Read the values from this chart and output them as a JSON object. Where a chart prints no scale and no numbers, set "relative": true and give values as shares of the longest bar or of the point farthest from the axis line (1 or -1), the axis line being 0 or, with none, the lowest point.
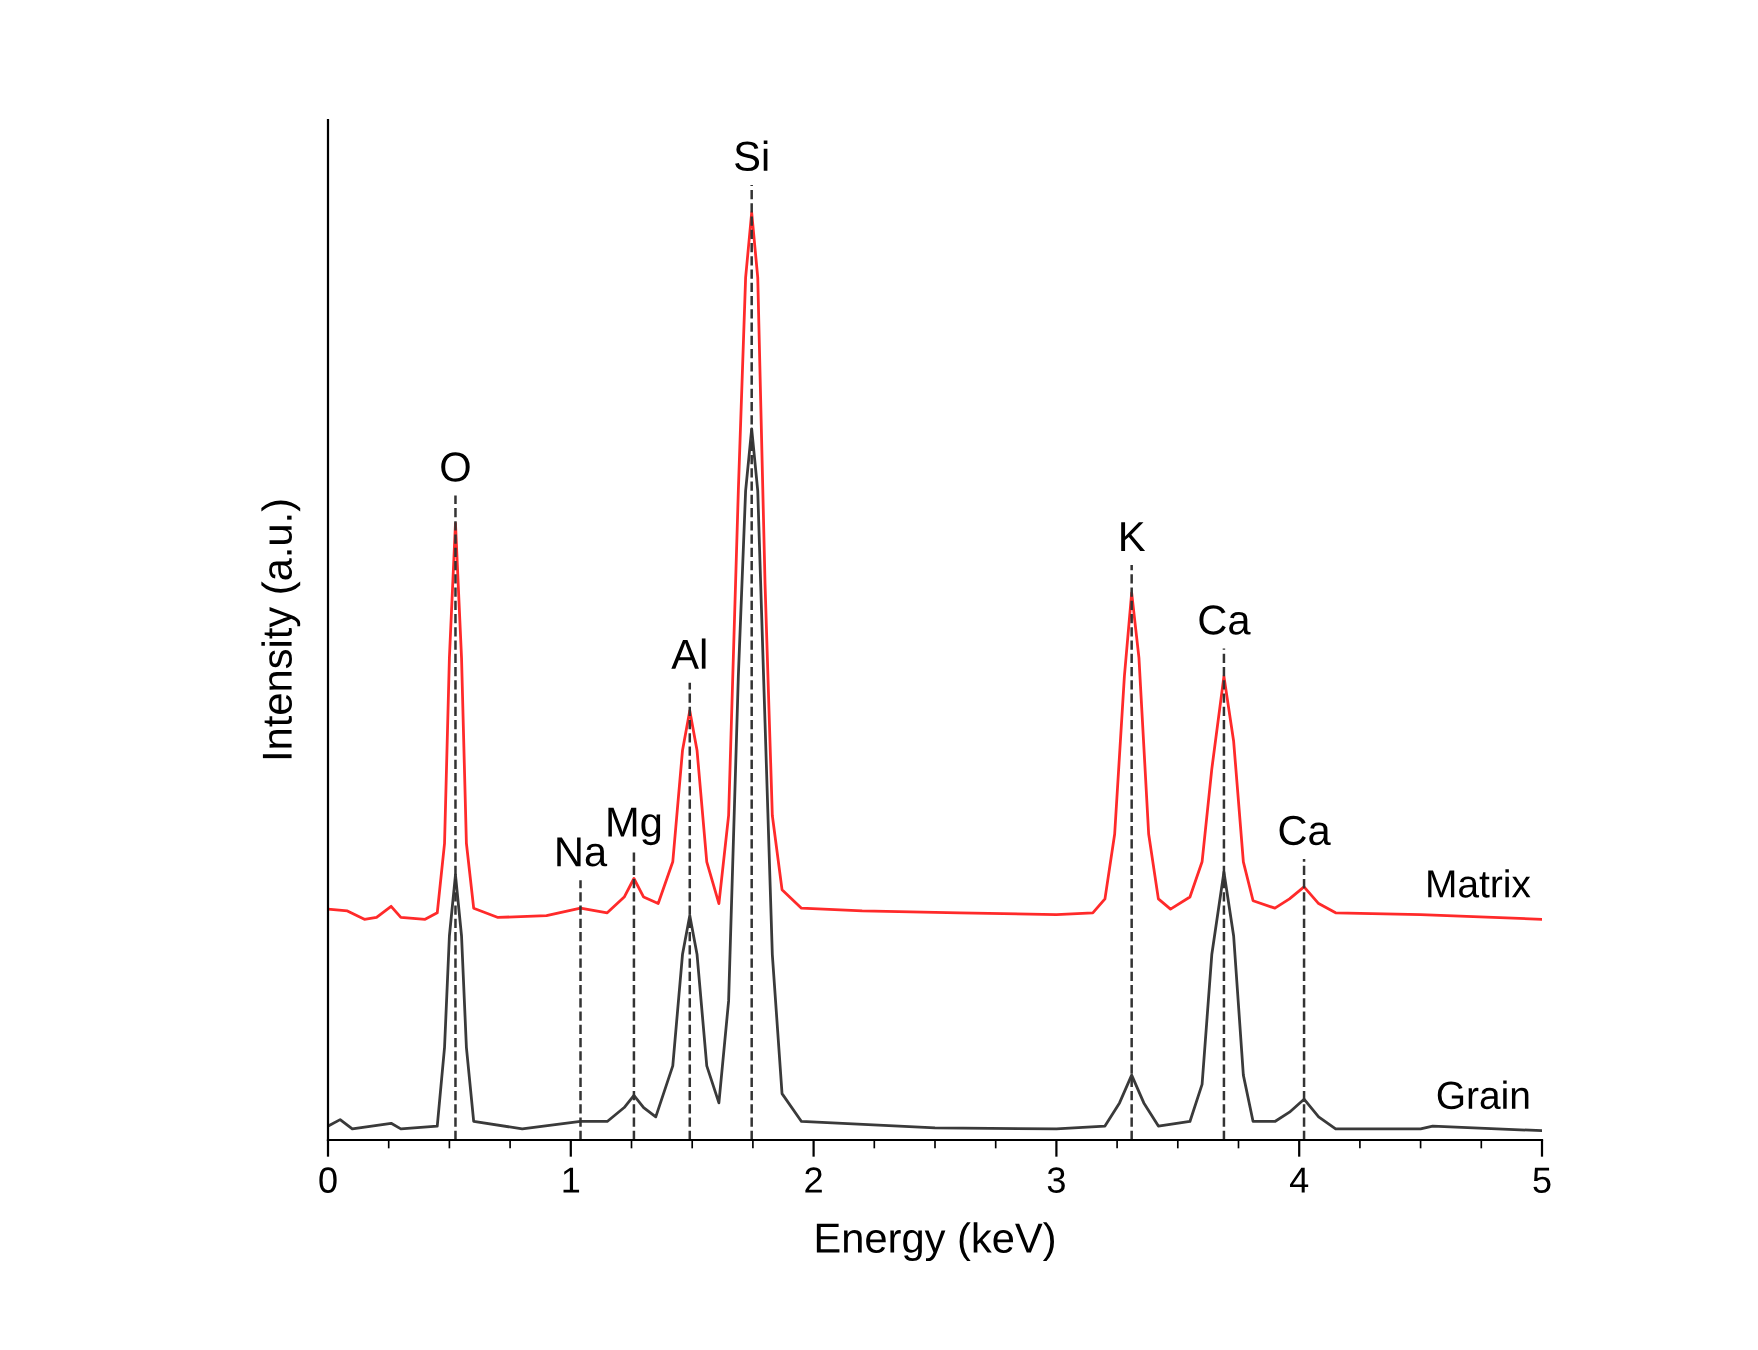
{
  "chart_data": {
    "type": "line",
    "relative": true,
    "xlabel": "Energy (keV)",
    "ylabel": "Intensity (a.u.)",
    "xlim": [
      0,
      5
    ],
    "xticks": [
      0,
      {
        "value": 0.25,
        "label": null
      },
      {
        "value": 0.5,
        "label": null
      },
      {
        "value": 0.75,
        "label": null
      },
      1,
      {
        "value": 1.25,
        "label": null
      },
      {
        "value": 1.5,
        "label": null
      },
      {
        "value": 1.75,
        "label": null
      },
      2,
      {
        "value": 2.25,
        "label": null
      },
      {
        "value": 2.5,
        "label": null
      },
      {
        "value": 2.75,
        "label": null
      },
      3,
      {
        "value": 3.25,
        "label": null
      },
      {
        "value": 3.5,
        "label": null
      },
      {
        "value": 3.75,
        "label": null
      },
      4,
      {
        "value": 4.25,
        "label": null
      },
      {
        "value": 4.5,
        "label": null
      },
      {
        "value": 4.75,
        "label": null
      },
      5
    ],
    "grid": false,
    "legend": false,
    "marker": "none",
    "line_style": "solid",
    "series": [
      {
        "name": "Matrix",
        "color": "#ff2a2a",
        "x": [
          0,
          0.08,
          0.15,
          0.2,
          0.26,
          0.3,
          0.4,
          0.45,
          0.48,
          0.5,
          0.525,
          0.55,
          0.57,
          0.6,
          0.7,
          0.9,
          1.04,
          1.15,
          1.22,
          1.26,
          1.3,
          1.36,
          1.42,
          1.46,
          1.49,
          1.52,
          1.56,
          1.61,
          1.65,
          1.69,
          1.72,
          1.745,
          1.77,
          1.8,
          1.83,
          1.87,
          1.95,
          2.2,
          2.6,
          3.0,
          3.15,
          3.2,
          3.24,
          3.28,
          3.31,
          3.34,
          3.38,
          3.42,
          3.47,
          3.55,
          3.6,
          3.64,
          3.69,
          3.73,
          3.77,
          3.81,
          3.9,
          3.96,
          4.02,
          4.08,
          4.15,
          4.5,
          5.0
        ],
        "values": [
          0.249,
          0.247,
          0.238,
          0.24,
          0.252,
          0.24,
          0.238,
          0.245,
          0.32,
          0.52,
          0.665,
          0.52,
          0.32,
          0.25,
          0.24,
          0.242,
          0.25,
          0.245,
          0.262,
          0.282,
          0.262,
          0.255,
          0.3,
          0.42,
          0.463,
          0.42,
          0.3,
          0.255,
          0.35,
          0.7,
          0.93,
          1.0,
          0.93,
          0.6,
          0.35,
          0.27,
          0.25,
          0.247,
          0.245,
          0.243,
          0.245,
          0.26,
          0.33,
          0.5,
          0.59,
          0.52,
          0.33,
          0.26,
          0.249,
          0.262,
          0.3,
          0.4,
          0.5,
          0.43,
          0.3,
          0.258,
          0.25,
          0.26,
          0.273,
          0.255,
          0.245,
          0.243,
          0.238
        ]
      },
      {
        "name": "Grain",
        "color": "#3a3a3a",
        "x": [
          0,
          0.05,
          0.1,
          0.26,
          0.3,
          0.45,
          0.48,
          0.5,
          0.525,
          0.55,
          0.57,
          0.6,
          0.8,
          1.04,
          1.15,
          1.22,
          1.26,
          1.3,
          1.35,
          1.42,
          1.46,
          1.49,
          1.52,
          1.56,
          1.61,
          1.65,
          1.69,
          1.72,
          1.745,
          1.77,
          1.8,
          1.83,
          1.87,
          1.95,
          2.5,
          3.0,
          3.2,
          3.26,
          3.31,
          3.36,
          3.42,
          3.55,
          3.6,
          3.64,
          3.69,
          3.73,
          3.77,
          3.81,
          3.9,
          3.96,
          4.02,
          4.08,
          4.15,
          4.5,
          4.55,
          5.0
        ],
        "values": [
          0.015,
          0.022,
          0.012,
          0.018,
          0.012,
          0.015,
          0.1,
          0.22,
          0.286,
          0.22,
          0.1,
          0.02,
          0.012,
          0.02,
          0.02,
          0.035,
          0.048,
          0.035,
          0.025,
          0.08,
          0.2,
          0.242,
          0.2,
          0.08,
          0.04,
          0.15,
          0.5,
          0.7,
          0.767,
          0.7,
          0.45,
          0.2,
          0.05,
          0.02,
          0.013,
          0.012,
          0.015,
          0.04,
          0.07,
          0.04,
          0.015,
          0.02,
          0.06,
          0.2,
          0.289,
          0.22,
          0.07,
          0.02,
          0.02,
          0.03,
          0.044,
          0.025,
          0.012,
          0.012,
          0.015,
          0.01
        ]
      }
    ],
    "ref_lines": [
      {
        "axis": "x",
        "value": 0.525,
        "label": "O",
        "line_style": "dashed",
        "color": "#333333"
      },
      {
        "axis": "x",
        "value": 1.04,
        "label": "Na",
        "line_style": "dashed",
        "color": "#333333"
      },
      {
        "axis": "x",
        "value": 1.26,
        "label": "Mg",
        "line_style": "dashed",
        "color": "#333333"
      },
      {
        "axis": "x",
        "value": 1.49,
        "label": "Al",
        "line_style": "dashed",
        "color": "#333333"
      },
      {
        "axis": "x",
        "value": 1.745,
        "label": "Si",
        "line_style": "dashed",
        "color": "#333333"
      },
      {
        "axis": "x",
        "value": 3.31,
        "label": "K",
        "line_style": "dashed",
        "color": "#333333"
      },
      {
        "axis": "x",
        "value": 3.69,
        "label": "Ca",
        "line_style": "dashed",
        "color": "#333333"
      },
      {
        "axis": "x",
        "value": 4.02,
        "label": "Ca",
        "line_style": "dashed",
        "color": "#333333"
      }
    ]
  }
}
